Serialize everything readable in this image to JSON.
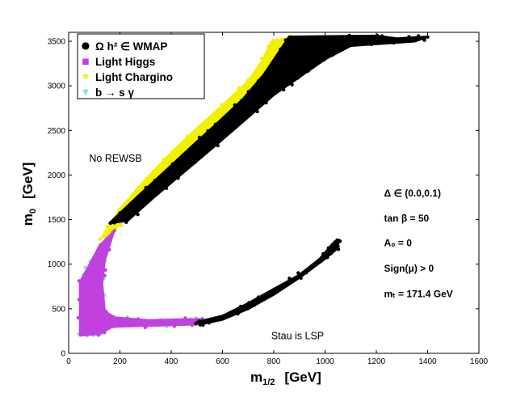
{
  "chart_data": {
    "type": "scatter",
    "xlabel_main": "m",
    "xlabel_sub": "1/2",
    "xlabel_unit": "[GeV]",
    "ylabel_main": "m",
    "ylabel_sub": "0",
    "ylabel_unit": "[GeV]",
    "xlim": [
      0,
      1600
    ],
    "ylim": [
      0,
      3600
    ],
    "xticks": [
      0,
      200,
      400,
      600,
      800,
      1000,
      1200,
      1400,
      1600
    ],
    "yticks": [
      0,
      500,
      1000,
      1500,
      2000,
      2500,
      3000,
      3500
    ],
    "colors": {
      "wmap": "#000000",
      "higgs": "#c040e0",
      "chargino": "#f2f200",
      "bsg": "#7fe8d8"
    },
    "legend": {
      "placement": "top-left",
      "entries": [
        {
          "label": "Ω h² ∈ WMAP",
          "series": "wmap",
          "symbol": "●"
        },
        {
          "label": "Light Higgs",
          "series": "higgs",
          "symbol": "■"
        },
        {
          "label": "Light Chargino",
          "series": "chargino",
          "symbol": "✱"
        },
        {
          "label": "b → s γ",
          "series": "bsg",
          "symbol": "▼"
        }
      ]
    },
    "series": [
      {
        "name": "Light Chargino",
        "key": "chargino",
        "outline": [
          [
            130,
            1300
          ],
          [
            200,
            1620
          ],
          [
            300,
            1950
          ],
          [
            400,
            2250
          ],
          [
            500,
            2520
          ],
          [
            600,
            2780
          ],
          [
            700,
            3050
          ],
          [
            760,
            3300
          ],
          [
            790,
            3490
          ],
          [
            860,
            3540
          ],
          [
            820,
            3300
          ],
          [
            730,
            3020
          ],
          [
            620,
            2700
          ],
          [
            520,
            2420
          ],
          [
            420,
            2130
          ],
          [
            320,
            1830
          ],
          [
            220,
            1520
          ],
          [
            160,
            1320
          ]
        ]
      },
      {
        "name": "Ω h² ∈ WMAP (upper band)",
        "key": "wmap",
        "outline": [
          [
            160,
            1460
          ],
          [
            270,
            1760
          ],
          [
            380,
            2050
          ],
          [
            480,
            2320
          ],
          [
            580,
            2580
          ],
          [
            680,
            2850
          ],
          [
            760,
            3120
          ],
          [
            830,
            3420
          ],
          [
            860,
            3550
          ],
          [
            1200,
            3560
          ],
          [
            1280,
            3530
          ],
          [
            1400,
            3550
          ],
          [
            1350,
            3500
          ],
          [
            1100,
            3450
          ],
          [
            1000,
            3300
          ],
          [
            900,
            3100
          ],
          [
            800,
            2900
          ],
          [
            700,
            2650
          ],
          [
            580,
            2350
          ],
          [
            460,
            2060
          ],
          [
            340,
            1770
          ],
          [
            230,
            1490
          ]
        ]
      },
      {
        "name": "b → s γ",
        "key": "bsg",
        "outline": [
          [
            45,
            200
          ],
          [
            45,
            800
          ],
          [
            85,
            1010
          ],
          [
            120,
            1200
          ],
          [
            150,
            1290
          ],
          [
            140,
            1040
          ],
          [
            130,
            780
          ],
          [
            140,
            470
          ],
          [
            180,
            400
          ],
          [
            310,
            370
          ],
          [
            450,
            380
          ],
          [
            520,
            380
          ],
          [
            520,
            330
          ],
          [
            420,
            320
          ],
          [
            300,
            310
          ],
          [
            170,
            300
          ],
          [
            120,
            220
          ]
        ]
      },
      {
        "name": "Light Higgs",
        "key": "higgs",
        "outline": [
          [
            45,
            200
          ],
          [
            45,
            800
          ],
          [
            85,
            1010
          ],
          [
            120,
            1200
          ],
          [
            150,
            1290
          ],
          [
            175,
            1360
          ],
          [
            140,
            1040
          ],
          [
            130,
            780
          ],
          [
            140,
            470
          ],
          [
            180,
            400
          ],
          [
            310,
            370
          ],
          [
            450,
            380
          ],
          [
            520,
            380
          ],
          [
            520,
            330
          ],
          [
            420,
            320
          ],
          [
            300,
            310
          ],
          [
            170,
            300
          ],
          [
            120,
            220
          ]
        ]
      },
      {
        "name": "Ω h² ∈ WMAP (stau coannihilation)",
        "key": "wmap",
        "outline": [
          [
            500,
            350
          ],
          [
            600,
            420
          ],
          [
            700,
            560
          ],
          [
            800,
            720
          ],
          [
            900,
            880
          ],
          [
            980,
            1060
          ],
          [
            1030,
            1230
          ],
          [
            1055,
            1270
          ],
          [
            1045,
            1170
          ],
          [
            990,
            1040
          ],
          [
            900,
            850
          ],
          [
            800,
            660
          ],
          [
            700,
            500
          ],
          [
            600,
            380
          ],
          [
            520,
            330
          ]
        ]
      }
    ],
    "annotations": [
      {
        "text": "No REWSB",
        "x": 80,
        "y": 2150,
        "style": "region"
      },
      {
        "text": "Stau is LSP",
        "x": 790,
        "y": 160,
        "style": "region"
      },
      {
        "text": "Δ  ∈ (0.0,0.1)",
        "x": 1230,
        "y": 1760,
        "style": "param"
      },
      {
        "text": "tan β = 50",
        "x": 1230,
        "y": 1480,
        "style": "param"
      },
      {
        "text": "A₀  = 0",
        "x": 1230,
        "y": 1200,
        "style": "param"
      },
      {
        "text": "Sign(μ) > 0",
        "x": 1230,
        "y": 915,
        "style": "param"
      },
      {
        "text": "mₜ = 171.4 GeV",
        "x": 1230,
        "y": 630,
        "style": "param"
      }
    ]
  }
}
